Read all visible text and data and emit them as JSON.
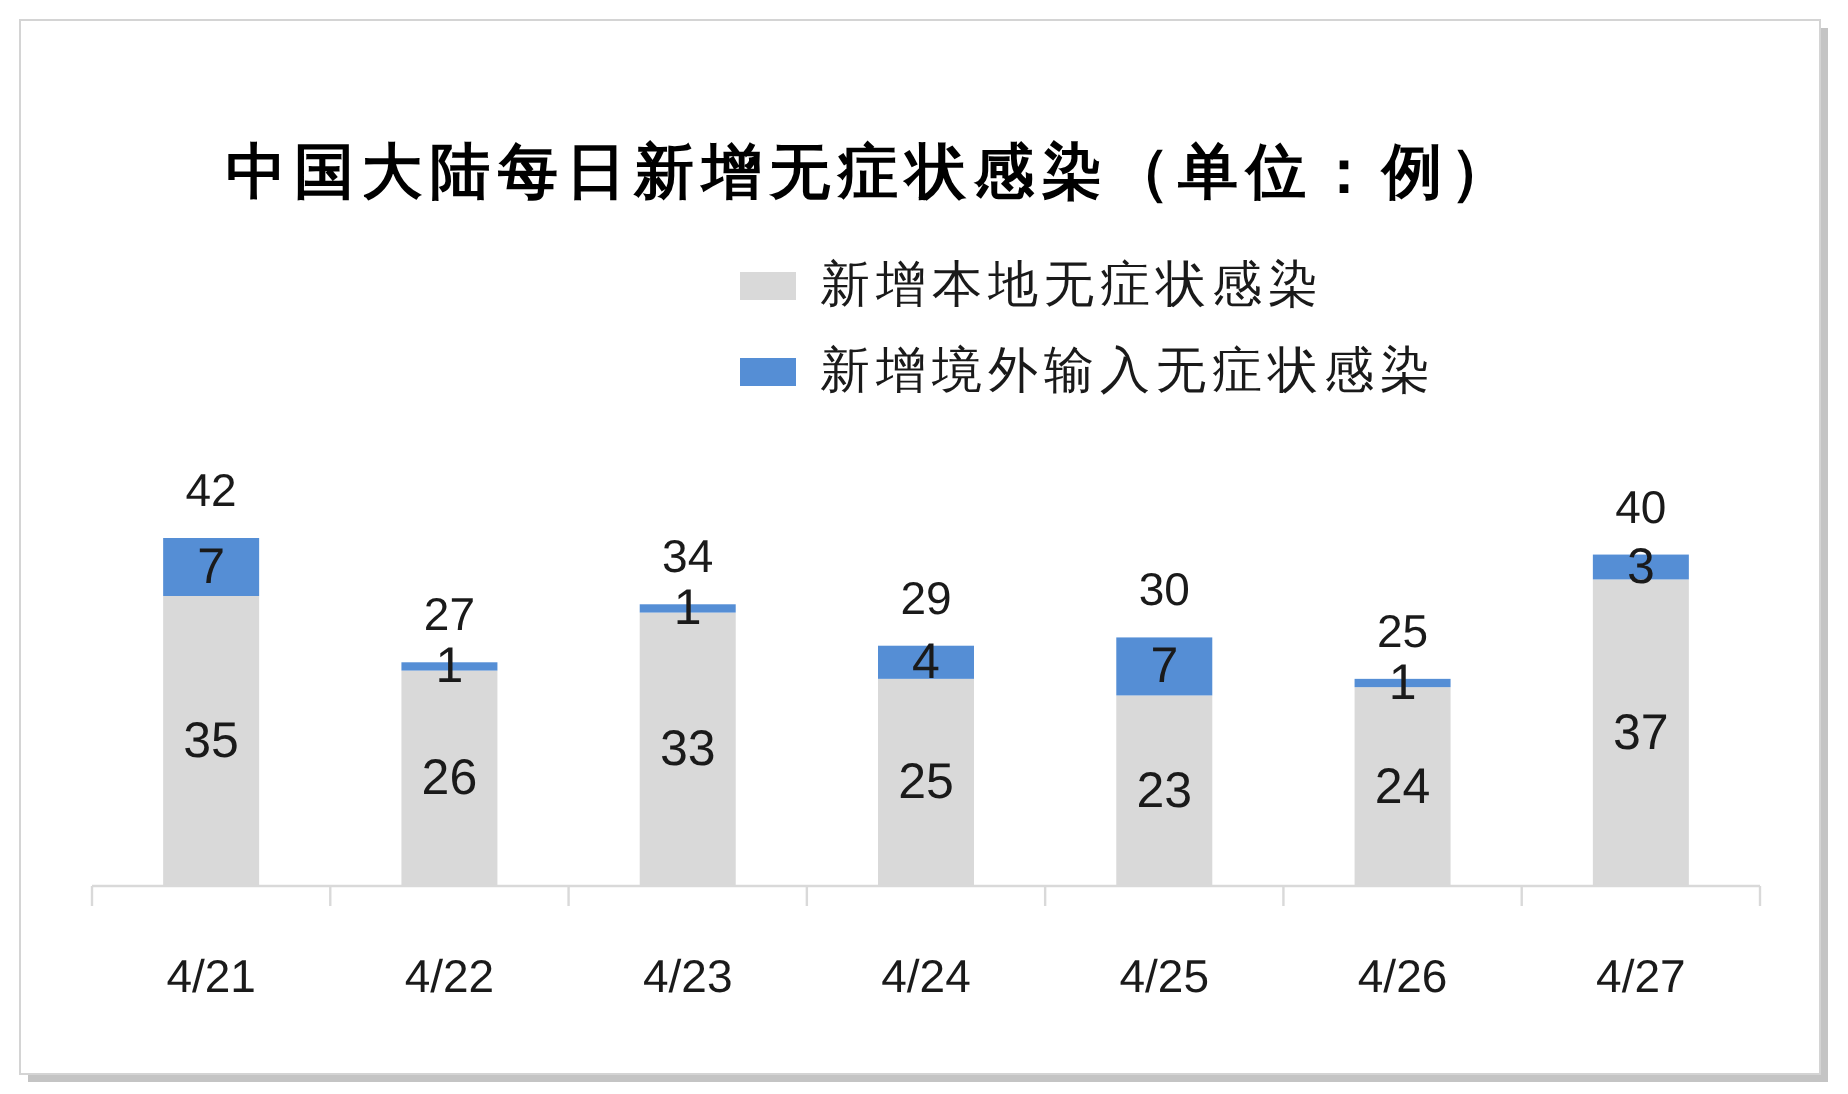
{
  "chart_data": {
    "type": "bar",
    "title": "中国大陆每日新增无症状感染（单位：例）",
    "categories": [
      "4/21",
      "4/22",
      "4/23",
      "4/24",
      "4/25",
      "4/26",
      "4/27"
    ],
    "series": [
      {
        "name": "新增本地无症状感染",
        "color": "#d9d9d9",
        "values": [
          35,
          26,
          33,
          25,
          23,
          24,
          37
        ]
      },
      {
        "name": "新增境外输入无症状感染",
        "color": "#558ed5",
        "values": [
          7,
          1,
          1,
          4,
          7,
          1,
          3
        ]
      }
    ],
    "stacked": true,
    "data_labels": true,
    "totals": [
      "42",
      "27",
      "34",
      "29",
      "30",
      "25",
      "40"
    ],
    "legend": "top right"
  }
}
